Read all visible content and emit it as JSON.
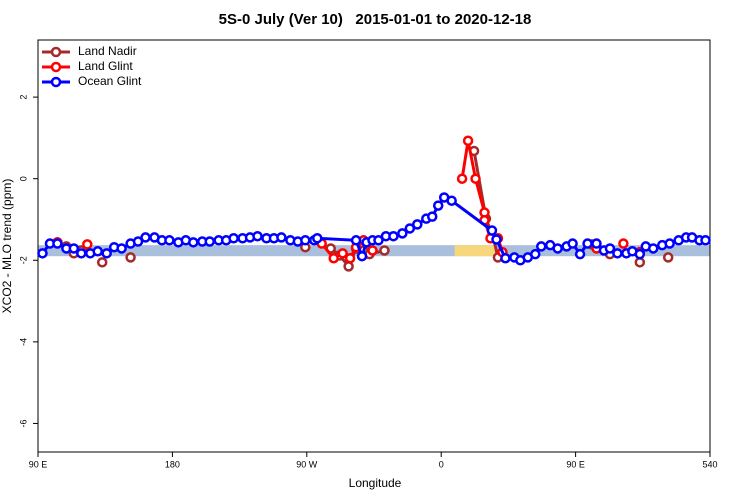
{
  "chart_data": {
    "type": "line",
    "title": "5S-0 July (Ver 10)   2015-01-01 to 2020-12-18",
    "xlabel": "Longitude",
    "ylabel": "XCO2 - MLO trend (ppm)",
    "xlim": [
      90,
      540
    ],
    "ylim": [
      -6.7,
      3.4
    ],
    "xticks": [
      {
        "value": 90,
        "label": "90 E"
      },
      180,
      {
        "value": 270,
        "label": "90 W"
      },
      {
        "value": 360,
        "label": "0"
      },
      {
        "value": 450,
        "label": "90 E"
      },
      540
    ],
    "yticks": [
      -6,
      -4,
      -2,
      0,
      2
    ],
    "legend": "topleft",
    "band": {
      "ylim": [
        -1.9,
        -1.63
      ],
      "color": "#a9bfdc",
      "highlight": {
        "xlim": [
          369,
          396
        ],
        "color": "#f6d77c"
      }
    },
    "series": [
      {
        "name": "Land Nadir",
        "color": "#a52a2a",
        "x": [
          103,
          109,
          114,
          119,
          null,
          133,
          null,
          152,
          null,
          269,
          null,
          286,
          292,
          298,
          303,
          308,
          312,
          322,
          null,
          382,
          390,
          395,
          398,
          null,
          461,
          null,
          473,
          null,
          493,
          null,
          512
        ],
        "values": [
          -1.56,
          -1.66,
          -1.83,
          -1.76,
          null,
          -2.05,
          null,
          -1.93,
          null,
          -1.68,
          null,
          -1.71,
          -1.88,
          -2.15,
          -1.71,
          -1.76,
          -1.85,
          -1.76,
          null,
          0.68,
          -0.98,
          -1.46,
          -1.93,
          null,
          -1.61,
          null,
          -1.85,
          null,
          -2.05,
          null,
          -1.93
        ]
      },
      {
        "name": "Land Glint",
        "color": "#ff0000",
        "x": [
          103,
          null,
          123,
          null,
          280,
          288,
          294,
          299,
          303,
          308,
          314,
          null,
          374,
          378,
          383,
          389,
          389,
          393,
          398,
          401,
          null,
          464,
          null,
          482,
          null,
          493
        ],
        "values": [
          -1.56,
          null,
          -1.61,
          null,
          -1.59,
          -1.95,
          -1.83,
          -1.95,
          -1.68,
          -1.51,
          -1.76,
          null,
          0,
          0.93,
          0,
          -0.83,
          -1.02,
          -1.46,
          -1.46,
          -1.8,
          null,
          -1.71,
          null,
          -1.59,
          null,
          -1.8
        ]
      },
      {
        "name": "Ocean Glint",
        "color": "#0000ff",
        "x": [
          93,
          98,
          103,
          109,
          114,
          119,
          125,
          130,
          136,
          141,
          146,
          152,
          157,
          162,
          168,
          173,
          178,
          184,
          189,
          194,
          200,
          205,
          211,
          216,
          221,
          227,
          232,
          237,
          243,
          248,
          253,
          259,
          264,
          269,
          275,
          277,
          303,
          307,
          310,
          314,
          318,
          323,
          328,
          334,
          339,
          344,
          350,
          354,
          358,
          362,
          367,
          394,
          397,
          403,
          409,
          413,
          418,
          423,
          427,
          433,
          438,
          444,
          448,
          453,
          458,
          464,
          469,
          473,
          478,
          484,
          488,
          493,
          497,
          502,
          508,
          513,
          519,
          524,
          528,
          533,
          537
        ],
        "values": [
          -1.83,
          -1.59,
          -1.59,
          -1.71,
          -1.71,
          -1.83,
          -1.83,
          -1.78,
          -1.83,
          -1.68,
          -1.71,
          -1.59,
          -1.54,
          -1.44,
          -1.44,
          -1.51,
          -1.51,
          -1.56,
          -1.51,
          -1.56,
          -1.54,
          -1.54,
          -1.51,
          -1.51,
          -1.46,
          -1.46,
          -1.44,
          -1.41,
          -1.46,
          -1.46,
          -1.44,
          -1.51,
          -1.54,
          -1.51,
          -1.51,
          -1.46,
          -1.51,
          -1.9,
          -1.56,
          -1.51,
          -1.51,
          -1.41,
          -1.41,
          -1.34,
          -1.22,
          -1.12,
          -0.98,
          -0.93,
          -0.66,
          -0.46,
          -0.54,
          -1.27,
          -1.49,
          -1.95,
          -1.93,
          -2.0,
          -1.93,
          -1.85,
          -1.66,
          -1.63,
          -1.71,
          -1.66,
          -1.59,
          -1.85,
          -1.59,
          -1.59,
          -1.76,
          -1.71,
          -1.83,
          -1.83,
          -1.78,
          -1.85,
          -1.66,
          -1.71,
          -1.63,
          -1.59,
          -1.51,
          -1.44,
          -1.44,
          -1.51,
          -1.51
        ]
      }
    ]
  }
}
